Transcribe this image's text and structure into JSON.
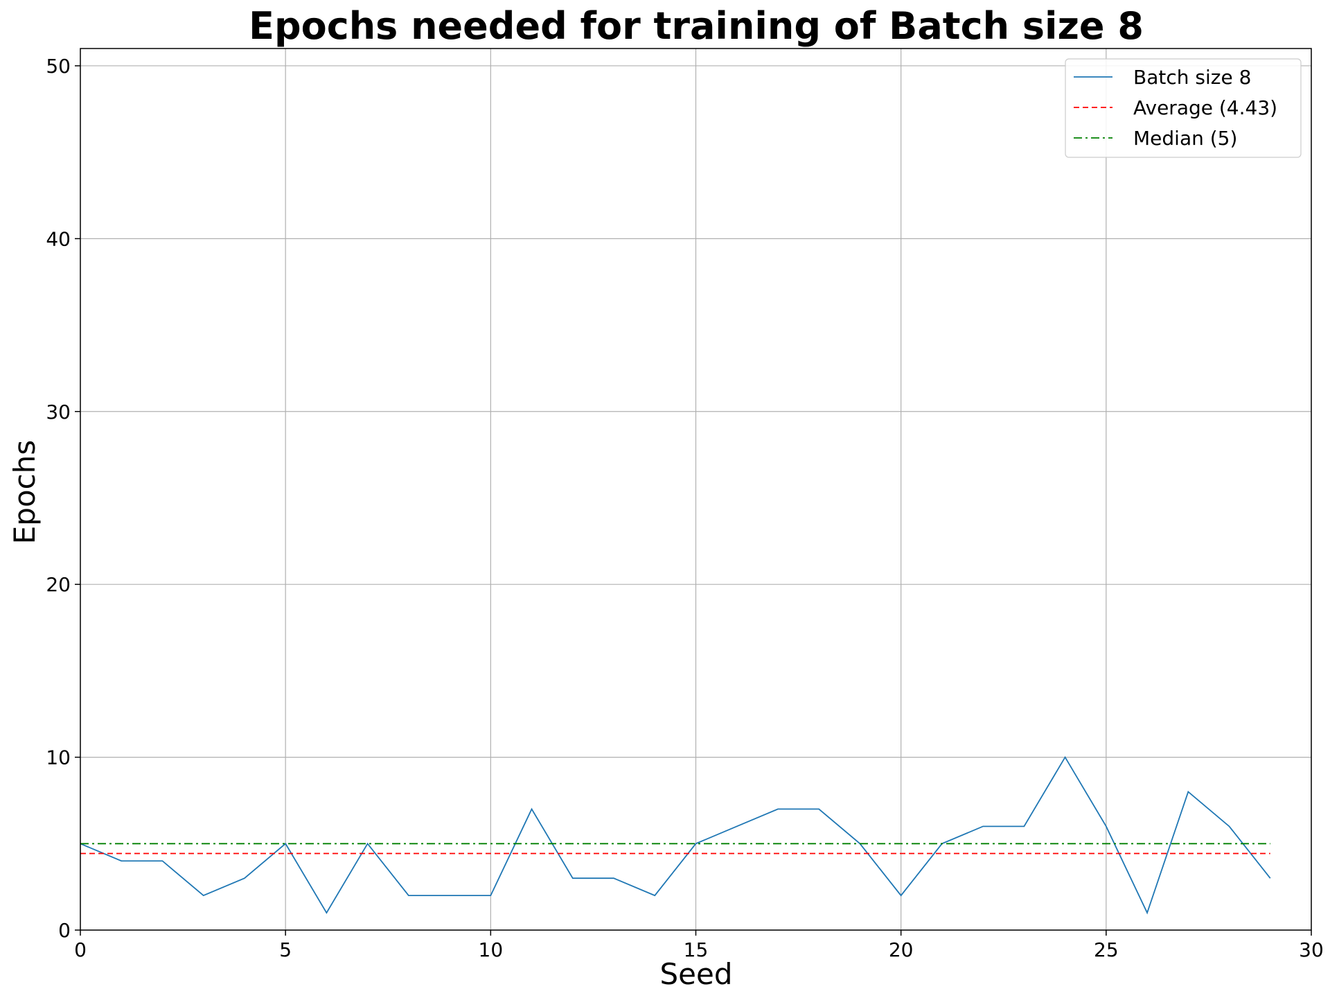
{
  "chart_data": {
    "type": "line",
    "title": "Epochs needed for training of Batch size 8",
    "xlabel": "Seed",
    "ylabel": "Epochs",
    "xlim": [
      0,
      30
    ],
    "ylim": [
      0,
      51
    ],
    "xticks": [
      0,
      5,
      10,
      15,
      20,
      25,
      30
    ],
    "yticks": [
      0,
      10,
      20,
      30,
      40,
      50
    ],
    "grid": true,
    "legend_position": "top-right",
    "series": [
      {
        "name": "Batch size 8",
        "style": "solid",
        "color": "#1f77b4",
        "x": [
          0,
          1,
          2,
          3,
          4,
          5,
          6,
          7,
          8,
          9,
          10,
          11,
          12,
          13,
          14,
          15,
          16,
          17,
          18,
          19,
          20,
          21,
          22,
          23,
          24,
          25,
          26,
          27,
          28,
          29
        ],
        "y": [
          5,
          4,
          4,
          2,
          3,
          5,
          1,
          5,
          2,
          2,
          2,
          7,
          3,
          3,
          2,
          5,
          6,
          7,
          7,
          5,
          2,
          5,
          6,
          6,
          10,
          6,
          1,
          8,
          6,
          3
        ]
      },
      {
        "name": "Average (4.43)",
        "style": "dashed",
        "color": "#ff0000",
        "x": [
          0,
          29
        ],
        "y": [
          4.43,
          4.43
        ]
      },
      {
        "name": "Median (5)",
        "style": "dashdot",
        "color": "#008000",
        "x": [
          0,
          29
        ],
        "y": [
          5,
          5
        ]
      }
    ]
  }
}
